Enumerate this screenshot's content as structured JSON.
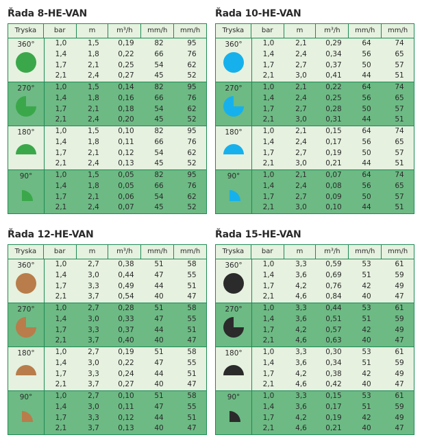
{
  "headers": [
    "Tryska",
    "bar",
    "m",
    "m³/h",
    "mm/h",
    "mm/h"
  ],
  "panels": [
    {
      "title": "Řada 8-HE-VAN",
      "color": "#3aa84a",
      "blocks": [
        {
          "nozzle": "360°",
          "arc": 360,
          "rows": [
            [
              "1,0",
              "1,5",
              "0,19",
              "82",
              "95"
            ],
            [
              "1,4",
              "1,8",
              "0,22",
              "66",
              "76"
            ],
            [
              "1,7",
              "2,1",
              "0,25",
              "54",
              "62"
            ],
            [
              "2,1",
              "2,4",
              "0,27",
              "45",
              "52"
            ]
          ]
        },
        {
          "nozzle": "270°",
          "arc": 270,
          "rows": [
            [
              "1,0",
              "1,5",
              "0,14",
              "82",
              "95"
            ],
            [
              "1,4",
              "1,8",
              "0,16",
              "66",
              "76"
            ],
            [
              "1,7",
              "2,1",
              "0,18",
              "54",
              "62"
            ],
            [
              "2,1",
              "2,4",
              "0,20",
              "45",
              "52"
            ]
          ]
        },
        {
          "nozzle": "180°",
          "arc": 180,
          "rows": [
            [
              "1,0",
              "1,5",
              "0,10",
              "82",
              "95"
            ],
            [
              "1,4",
              "1,8",
              "0,11",
              "66",
              "76"
            ],
            [
              "1,7",
              "2,1",
              "0,12",
              "54",
              "62"
            ],
            [
              "2,1",
              "2,4",
              "0,13",
              "45",
              "52"
            ]
          ]
        },
        {
          "nozzle": "90°",
          "arc": 90,
          "rows": [
            [
              "1,0",
              "1,5",
              "0,05",
              "82",
              "95"
            ],
            [
              "1,4",
              "1,8",
              "0,05",
              "66",
              "76"
            ],
            [
              "1,7",
              "2,1",
              "0,06",
              "54",
              "62"
            ],
            [
              "2,1",
              "2,4",
              "0,07",
              "45",
              "52"
            ]
          ]
        }
      ]
    },
    {
      "title": "Řada 10-HE-VAN",
      "color": "#16b1ec",
      "blocks": [
        {
          "nozzle": "360°",
          "arc": 360,
          "rows": [
            [
              "1,0",
              "2,1",
              "0,29",
              "64",
              "74"
            ],
            [
              "1,4",
              "2,4",
              "0,34",
              "56",
              "65"
            ],
            [
              "1,7",
              "2,7",
              "0,37",
              "50",
              "57"
            ],
            [
              "2,1",
              "3,0",
              "0,41",
              "44",
              "51"
            ]
          ]
        },
        {
          "nozzle": "270°",
          "arc": 270,
          "rows": [
            [
              "1,0",
              "2,1",
              "0,22",
              "64",
              "74"
            ],
            [
              "1,4",
              "2,4",
              "0,25",
              "56",
              "65"
            ],
            [
              "1,7",
              "2,7",
              "0,28",
              "50",
              "57"
            ],
            [
              "2,1",
              "3,0",
              "0,31",
              "44",
              "51"
            ]
          ]
        },
        {
          "nozzle": "180°",
          "arc": 180,
          "rows": [
            [
              "1,0",
              "2,1",
              "0,15",
              "64",
              "74"
            ],
            [
              "1,4",
              "2,4",
              "0,17",
              "56",
              "65"
            ],
            [
              "1,7",
              "2,7",
              "0,19",
              "50",
              "57"
            ],
            [
              "2,1",
              "3,0",
              "0,21",
              "44",
              "51"
            ]
          ]
        },
        {
          "nozzle": "90°",
          "arc": 90,
          "rows": [
            [
              "1,0",
              "2,1",
              "0,07",
              "64",
              "74"
            ],
            [
              "1,4",
              "2,4",
              "0,08",
              "56",
              "65"
            ],
            [
              "1,7",
              "2,7",
              "0,09",
              "50",
              "57"
            ],
            [
              "2,1",
              "3,0",
              "0,10",
              "44",
              "51"
            ]
          ]
        }
      ]
    },
    {
      "title": "Řada 12-HE-VAN",
      "color": "#b87d4a",
      "blocks": [
        {
          "nozzle": "360°",
          "arc": 360,
          "rows": [
            [
              "1,0",
              "2,7",
              "0,38",
              "51",
              "58"
            ],
            [
              "1,4",
              "3,0",
              "0,44",
              "47",
              "55"
            ],
            [
              "1,7",
              "3,3",
              "0,49",
              "44",
              "51"
            ],
            [
              "2,1",
              "3,7",
              "0,54",
              "40",
              "47"
            ]
          ]
        },
        {
          "nozzle": "270°",
          "arc": 270,
          "rows": [
            [
              "1,0",
              "2,7",
              "0,28",
              "51",
              "58"
            ],
            [
              "1,4",
              "3,0",
              "0,33",
              "47",
              "55"
            ],
            [
              "1,7",
              "3,3",
              "0,37",
              "44",
              "51"
            ],
            [
              "2,1",
              "3,7",
              "0,40",
              "40",
              "47"
            ]
          ]
        },
        {
          "nozzle": "180°",
          "arc": 180,
          "rows": [
            [
              "1,0",
              "2,7",
              "0,19",
              "51",
              "58"
            ],
            [
              "1,4",
              "3,0",
              "0,22",
              "47",
              "55"
            ],
            [
              "1,7",
              "3,3",
              "0,24",
              "44",
              "51"
            ],
            [
              "2,1",
              "3,7",
              "0,27",
              "40",
              "47"
            ]
          ]
        },
        {
          "nozzle": "90°",
          "arc": 90,
          "rows": [
            [
              "1,0",
              "2,7",
              "0,10",
              "51",
              "58"
            ],
            [
              "1,4",
              "3,0",
              "0,11",
              "47",
              "55"
            ],
            [
              "1,7",
              "3,3",
              "0,12",
              "44",
              "51"
            ],
            [
              "2,1",
              "3,7",
              "0,13",
              "40",
              "47"
            ]
          ]
        }
      ]
    },
    {
      "title": "Řada 15-HE-VAN",
      "color": "#2b2b2b",
      "blocks": [
        {
          "nozzle": "360°",
          "arc": 360,
          "rows": [
            [
              "1,0",
              "3,3",
              "0,59",
              "53",
              "61"
            ],
            [
              "1,4",
              "3,6",
              "0,69",
              "51",
              "59"
            ],
            [
              "1,7",
              "4,2",
              "0,76",
              "42",
              "49"
            ],
            [
              "2,1",
              "4,6",
              "0,84",
              "40",
              "47"
            ]
          ]
        },
        {
          "nozzle": "270°",
          "arc": 270,
          "rows": [
            [
              "1,0",
              "3,3",
              "0,44",
              "53",
              "61"
            ],
            [
              "1,4",
              "3,6",
              "0,51",
              "51",
              "59"
            ],
            [
              "1,7",
              "4,2",
              "0,57",
              "42",
              "49"
            ],
            [
              "2,1",
              "4,6",
              "0,63",
              "40",
              "47"
            ]
          ]
        },
        {
          "nozzle": "180°",
          "arc": 180,
          "rows": [
            [
              "1,0",
              "3,3",
              "0,30",
              "53",
              "61"
            ],
            [
              "1,4",
              "3,6",
              "0,34",
              "51",
              "59"
            ],
            [
              "1,7",
              "4,2",
              "0,38",
              "42",
              "49"
            ],
            [
              "2,1",
              "4,6",
              "0,42",
              "40",
              "47"
            ]
          ]
        },
        {
          "nozzle": "90°",
          "arc": 90,
          "rows": [
            [
              "1,0",
              "3,3",
              "0,15",
              "53",
              "61"
            ],
            [
              "1,4",
              "3,6",
              "0,17",
              "51",
              "59"
            ],
            [
              "1,7",
              "4,2",
              "0,19",
              "42",
              "49"
            ],
            [
              "2,1",
              "4,6",
              "0,21",
              "40",
              "47"
            ]
          ]
        }
      ]
    }
  ]
}
